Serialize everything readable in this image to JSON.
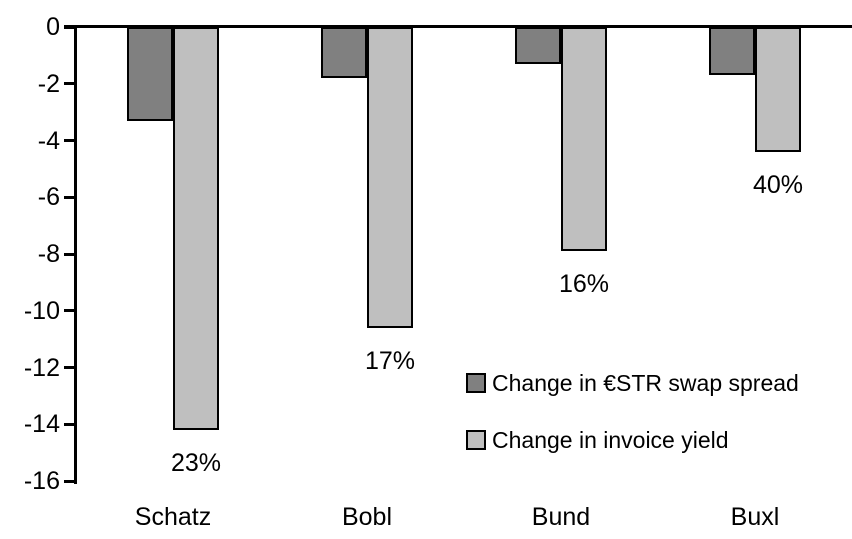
{
  "chart_data": {
    "type": "bar",
    "title": "",
    "xlabel": "",
    "ylabel": "",
    "categories": [
      "Schatz",
      "Bobl",
      "Bund",
      "Buxl"
    ],
    "series": [
      {
        "name": "Change in €STR swap spread",
        "color": "#808080",
        "values": [
          -3.3,
          -1.8,
          -1.3,
          -1.7
        ]
      },
      {
        "name": "Change in invoice yield",
        "color": "#bfbfbf",
        "values": [
          -14.2,
          -10.6,
          -7.9,
          -4.4
        ],
        "data_labels": [
          "23%",
          "17%",
          "16%",
          "40%"
        ]
      }
    ],
    "y_axis": {
      "min": -16,
      "max": 0,
      "tick_step": 2,
      "tick_labels": [
        "0",
        "-2",
        "-4",
        "-6",
        "-8",
        "-10",
        "-12",
        "-14",
        "-16"
      ]
    },
    "grid": false,
    "legend": {
      "position": "inside-right",
      "entries": [
        "Change in €STR swap spread",
        "Change in invoice yield"
      ]
    },
    "colors": {
      "axis": "#000000",
      "bar_border": "#000000",
      "background": "#ffffff",
      "text": "#000000"
    }
  }
}
